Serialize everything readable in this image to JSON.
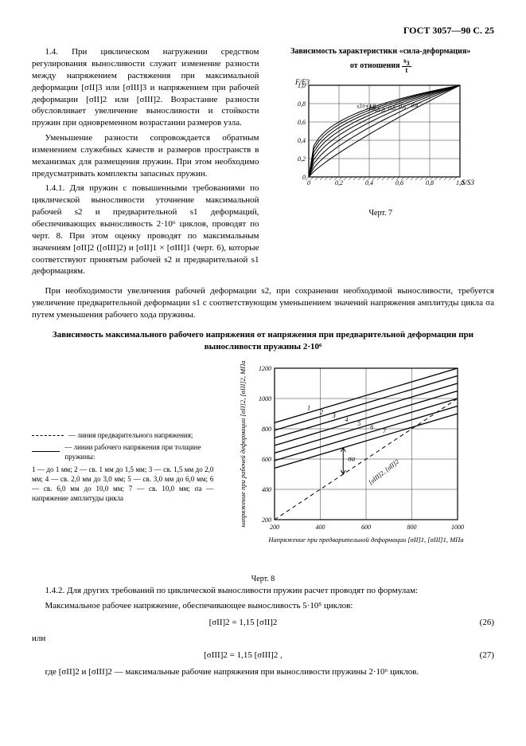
{
  "header": "ГОСТ 3057—90 С. 25",
  "leftParas": [
    "1.4. При циклическом нагружении средством регулирования выносливости служит изменение разности между напряжением растяжения при максимальной деформации [σII]3 или [σIII]3 и напряжением при рабочей деформации [σII]2 или [σIII]2. Возрастание разности обусловливает увеличение выносливости и стойкости пружин при одновременном возрастании размеров узла.",
    "Уменьшение разности сопровождается обратным изменением служебных качеств и размеров пространств в механизмах для размещения пружин. При этом необходимо предусматривать комплекты запасных пружин.",
    "1.4.1. Для пружин с повышенными требованиями по циклической выносливости уточнение максимальной рабочей s2 и предварительной s1 деформаций, обеспечивающих выносливость 2·10⁶ циклов, проводят по черт. 8. При этом оценку проводят по максимальным значениям [σII]2 ([σIII]2) и [σII]1 × [σIII]1 (черт. 6), которые соответствуют принятым рабочей s2 и предварительной s1 деформациям."
  ],
  "chart7": {
    "title": "Зависимость характеристики «сила-деформация»",
    "subtitle_pre": "от отношения ",
    "yAxisLabel": "F/F3",
    "xAxisLabel": "S/S3",
    "yTicks": [
      "1,0",
      "0,8",
      "0,6",
      "0,4",
      "0,2",
      "0"
    ],
    "xTicks": [
      "0",
      "0,2",
      "0,4",
      "0,6",
      "0,8",
      "1,0"
    ],
    "curveLabels": [
      "s3/t=1,8",
      "1,6",
      "1,4",
      "1,2",
      "1,0",
      "0,8",
      "0,6",
      "0,4"
    ],
    "colors": {
      "grid": "#000",
      "curve": "#000",
      "bg": "#fff"
    },
    "caption": "Черт. 7"
  },
  "fullParas": [
    "При необходимости увеличения рабочей деформации s2, при сохранении необходимой выносливости, требуется увеличение предварительной деформации s1 с соответствующим уменьшением значений напряжения амплитуды цикла σa путем уменьшения рабочего хода пружины."
  ],
  "section2Title": "Зависимость максимального рабочего напряжения от напряжения при предварительной деформации при выносливости пружины 2·10⁶",
  "chart8": {
    "yLabel": "напряжение при рабочей деформации [σII]2, [σIII]2, МПа",
    "xLabel": "Напряжение при предварительной деформации [σII]1, [σIII]1, МПа",
    "yTicks": [
      "1200",
      "1000",
      "800",
      "600",
      "400",
      "200"
    ],
    "xTicks": [
      "200",
      "400",
      "600",
      "800",
      "1000"
    ],
    "lineNumbers": [
      "1",
      "2",
      "3",
      "4",
      "5",
      "6",
      "7"
    ],
    "sigmaLabel": "σa",
    "arrowTarget": "[σIII]2, [σII]2",
    "caption": "Черт. 8",
    "colors": {
      "grid": "#000",
      "solid": "#000",
      "dash": "#000",
      "bg": "#fff"
    }
  },
  "legend": {
    "dash": "— линия предварительного напряжения;",
    "solid": "— линии рабочего напряжения при толщине пружины:",
    "detail": "1 — до 1 мм; 2 — св. 1 мм до 1,5 мм; 3 — св. 1,5 мм до 2,0 мм; 4 — св. 2,0 мм до 3,0 мм; 5 — св. 3,0 мм до 6,0 мм; 6 — св. 6,0 мм до 10,0 мм; 7 — св. 10,0 мм; σa — напряжение амплитуды цикла"
  },
  "lower": {
    "p142": "1.4.2. Для других требований по циклической выносливости пружин расчет проводят по формулам:",
    "p_max": "Максимальное рабочее напряжение, обеспечивающее выносливость 5·10⁵ циклов:",
    "formula26": "[σII]2 = 1,15 [σII]2",
    "num26": "(26)",
    "or": "или",
    "formula27": "[σIII]2 = 1,15 [σIII]2 ,",
    "num27": "(27)",
    "where": "где [σII]2 и [σIII]2 — максимальные рабочие напряжения при выносливости пружины 2·10⁶ циклов."
  }
}
